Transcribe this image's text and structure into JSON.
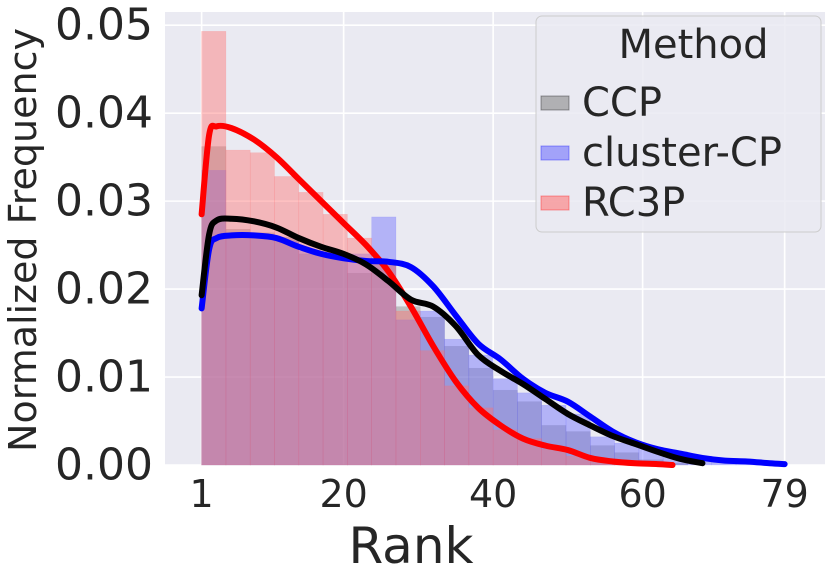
{
  "chart_data": {
    "type": "histogram",
    "title": "",
    "xlabel": "Rank",
    "ylabel": "Normalized Frequency",
    "xlim": [
      -3.9,
      84.4
    ],
    "ylim": [
      0,
      0.0515
    ],
    "xticks": [
      1,
      20,
      40,
      60,
      79
    ],
    "xtick_labels": [
      "1",
      "20",
      "40",
      "60",
      "79"
    ],
    "yticks": [
      0.0,
      0.01,
      0.02,
      0.03,
      0.04,
      0.05
    ],
    "ytick_labels": [
      "0.00",
      "0.01",
      "0.02",
      "0.03",
      "0.04",
      "0.05"
    ],
    "grid": true,
    "legend": {
      "title": "Method",
      "position": "top-right",
      "entries": [
        "CCP",
        "cluster-CP",
        "RC3P"
      ]
    },
    "bin_edges": [
      1,
      4.25,
      7.5,
      10.75,
      14,
      17.25,
      20.5,
      23.75,
      27,
      30.25,
      33.5,
      36.75,
      40,
      43.25,
      46.5,
      49.75,
      53,
      56.25,
      59.5,
      62.75,
      66,
      69.25,
      72.5,
      75.75,
      79
    ],
    "series": [
      {
        "name": "CCP",
        "color": "#000000",
        "fill": "#808080",
        "hist": [
          0.0362,
          0.0268,
          0.0264,
          0.0259,
          0.024,
          0.0238,
          0.0218,
          0.0232,
          0.018,
          0.0168,
          0.0135,
          0.011,
          0.0085,
          0.0072,
          0.0045,
          0.0038,
          0.0022,
          0.0014,
          0.0006,
          0.0002,
          0,
          0,
          0,
          0
        ],
        "kde_x": [
          1,
          2,
          3,
          5,
          8,
          11,
          14,
          17,
          20,
          23,
          26,
          29,
          32,
          35,
          38,
          41,
          44,
          47,
          50,
          53,
          56,
          59,
          62,
          65,
          68
        ],
        "kde_y": [
          0.0193,
          0.0262,
          0.0278,
          0.028,
          0.0277,
          0.027,
          0.0258,
          0.0248,
          0.024,
          0.0228,
          0.0209,
          0.0188,
          0.018,
          0.0158,
          0.0125,
          0.0107,
          0.0092,
          0.0075,
          0.0058,
          0.0045,
          0.0033,
          0.0024,
          0.0015,
          0.0007,
          0.0002
        ]
      },
      {
        "name": "cluster-CP",
        "color": "#0000ff",
        "fill": "#6666ff",
        "hist": [
          0.0335,
          0.0262,
          0.0261,
          0.0255,
          0.0243,
          0.024,
          0.024,
          0.0282,
          0.0165,
          0.0175,
          0.0143,
          0.0125,
          0.0098,
          0.0082,
          0.0068,
          0.0058,
          0.0032,
          0.0025,
          0.002,
          0.0015,
          0.001,
          0.0006,
          0.0003,
          0.0001
        ],
        "kde_x": [
          1,
          2,
          3,
          5,
          8,
          11,
          14,
          17,
          20,
          23,
          26,
          29,
          32,
          35,
          38,
          41,
          44,
          47,
          50,
          53,
          56,
          59,
          62,
          65,
          68,
          71,
          74,
          77,
          79
        ],
        "kde_y": [
          0.0178,
          0.0245,
          0.0258,
          0.0261,
          0.0261,
          0.0258,
          0.0248,
          0.024,
          0.0235,
          0.0232,
          0.0231,
          0.0225,
          0.0203,
          0.017,
          0.0138,
          0.012,
          0.0098,
          0.0082,
          0.0072,
          0.0055,
          0.0038,
          0.0026,
          0.0018,
          0.0013,
          0.0008,
          0.0005,
          0.0004,
          0.0002,
          0.0001
        ]
      },
      {
        "name": "RC3P",
        "color": "#ff0000",
        "fill": "#ff6e6e",
        "hist": [
          0.0493,
          0.0358,
          0.0355,
          0.0328,
          0.031,
          0.0285,
          0.0258,
          0.023,
          0.0175,
          0.013,
          0.009,
          0.0065,
          0.004,
          0.003,
          0.0018,
          0.001,
          0.0005,
          0.0003,
          0.0001,
          0,
          0,
          0,
          0,
          0
        ],
        "kde_x": [
          1,
          2,
          3,
          5,
          8,
          11,
          14,
          17,
          20,
          23,
          26,
          29,
          32,
          35,
          38,
          41,
          44,
          47,
          50,
          53,
          56,
          59,
          62,
          64
        ],
        "kde_y": [
          0.0285,
          0.0375,
          0.0385,
          0.0383,
          0.037,
          0.035,
          0.0325,
          0.03,
          0.0275,
          0.025,
          0.022,
          0.018,
          0.0135,
          0.0095,
          0.0065,
          0.0045,
          0.003,
          0.0022,
          0.0017,
          0.0008,
          0.0004,
          0.0002,
          0.0001,
          0
        ]
      }
    ]
  }
}
